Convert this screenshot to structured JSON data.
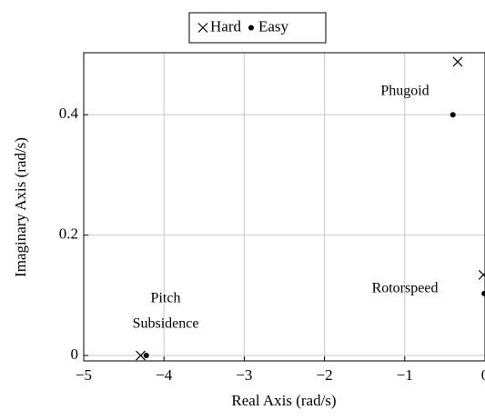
{
  "chart_data": {
    "type": "scatter",
    "x_label": "Real Axis (rad/s)",
    "y_label": "Imaginary Axis (rad/s)",
    "xlim": [
      -5,
      0
    ],
    "ylim": [
      -0.009,
      0.503
    ],
    "xticks": [
      {
        "value": -5,
        "label": "−5"
      },
      {
        "value": -4,
        "label": "−4"
      },
      {
        "value": -3,
        "label": "−3"
      },
      {
        "value": -2,
        "label": "−2"
      },
      {
        "value": -1,
        "label": "−1"
      },
      0
    ],
    "yticks": [
      0,
      0.2,
      0.4
    ],
    "grid": true,
    "legend": "top",
    "series": [
      {
        "name": "Hard",
        "marker": "x",
        "color": "#000000",
        "x": [
          -4.29,
          -0.34,
          -0.02
        ],
        "values": [
          0,
          0.488,
          0.134
        ]
      },
      {
        "name": "Easy",
        "marker": "dot",
        "color": "#000000",
        "x": [
          -4.22,
          -0.4,
          -0.01
        ],
        "values": [
          0,
          0.4,
          0.103
        ]
      }
    ],
    "annotations": [
      "Phugoid",
      "Rotorspeed",
      "Pitch",
      "Subsidence"
    ]
  }
}
